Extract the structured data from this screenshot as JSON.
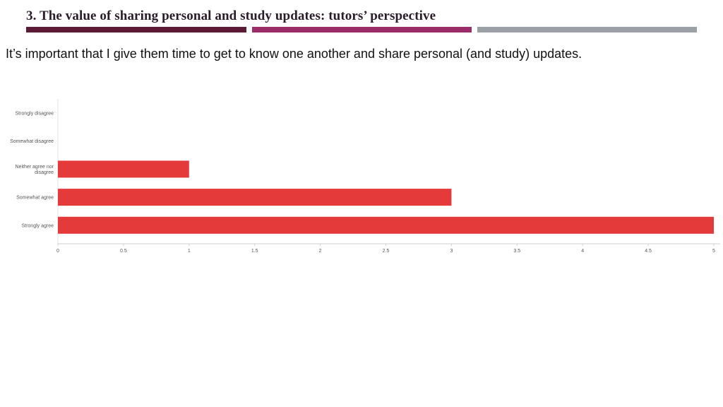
{
  "slide": {
    "title": "3. The value of sharing personal and study updates: tutors’ perspective",
    "subtitle": "It’s important that I give them time to get to know one another and share personal (and study) updates.",
    "accent_colors": [
      "#5b1a36",
      "#9b2d6a",
      "#9aa0a6"
    ]
  },
  "chart_data": {
    "type": "bar",
    "orientation": "horizontal",
    "categories": [
      "Strongly disagree",
      "Somewhat disagree",
      "Neither agree nor disagree",
      "Somewhat agree",
      "Strongly agree"
    ],
    "category_lines": [
      [
        "Strongly disagree"
      ],
      [
        "Somewhat disagree"
      ],
      [
        "Neither agree nor",
        "disagree"
      ],
      [
        "Somewhat agree"
      ],
      [
        "Strongly agree"
      ]
    ],
    "values": [
      0,
      0,
      1,
      3,
      5
    ],
    "xlim": [
      0,
      5
    ],
    "xticks": [
      "0",
      "0.5",
      "1",
      "1.5",
      "2",
      "2.5",
      "3",
      "3.5",
      "4",
      "4.5",
      "5"
    ],
    "bar_color": "#e43a3a",
    "grid": false
  }
}
